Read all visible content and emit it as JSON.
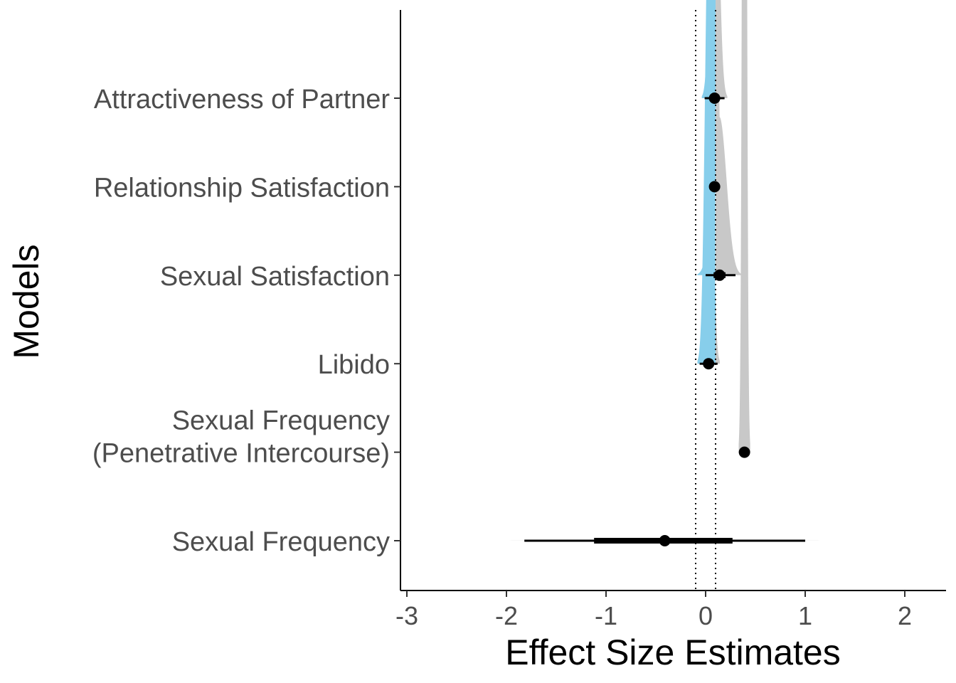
{
  "chart_data": {
    "type": "forest-density",
    "title": "",
    "xlabel": "Effect Size Estimates",
    "ylabel": "Models",
    "xlim": [
      -3.1,
      2.4
    ],
    "x_ticks": [
      -3,
      -2,
      -1,
      0,
      1,
      2
    ],
    "x_tick_labels": [
      "-3",
      "-2",
      "-1",
      "0",
      "1",
      "2"
    ],
    "reference_lines": [
      -0.1,
      0.1
    ],
    "grid": false,
    "colors": {
      "inside_rope": "#87ceeb",
      "outside_rope": "#c8c8c8",
      "point": "#000000",
      "reference_line": "#000000"
    },
    "categories": [
      {
        "label_lines": [
          "Attractiveness of Partner"
        ],
        "estimate": 0.09,
        "density_sd": 0.04,
        "density_height": 0.9,
        "ci_inner": [
          0.06,
          0.12
        ],
        "ci_outer": [
          -0.01,
          0.19
        ]
      },
      {
        "label_lines": [
          "Relationship Satisfaction"
        ],
        "estimate": 0.09,
        "density_sd": 0.025,
        "density_height": 0.9,
        "ci_inner": [
          0.08,
          0.11
        ],
        "ci_outer": [
          0.04,
          0.14
        ]
      },
      {
        "label_lines": [
          "Sexual Satisfaction"
        ],
        "estimate": 0.14,
        "density_sd": 0.07,
        "density_height": 0.75,
        "ci_inner": [
          0.08,
          0.2
        ],
        "ci_outer": [
          0.0,
          0.3
        ]
      },
      {
        "label_lines": [
          "Libido"
        ],
        "estimate": 0.03,
        "density_sd": 0.035,
        "density_height": 1.1,
        "ci_inner": [
          0.0,
          0.06
        ],
        "ci_outer": [
          -0.06,
          0.12
        ]
      },
      {
        "label_lines": [
          "Sexual Frequency",
          "(Penetrative Intercourse)"
        ],
        "estimate": 0.39,
        "density_sd": 0.018,
        "density_height": 1.8,
        "ci_inner": [
          0.38,
          0.4
        ],
        "ci_outer": [
          0.36,
          0.42
        ]
      },
      {
        "label_lines": [
          "Sexual Frequency"
        ],
        "estimate": -0.41,
        "density_sd": 0.6,
        "density_height": 0.05,
        "ci_inner": [
          -1.12,
          0.27
        ],
        "ci_outer": [
          -1.82,
          1.0
        ]
      }
    ]
  }
}
